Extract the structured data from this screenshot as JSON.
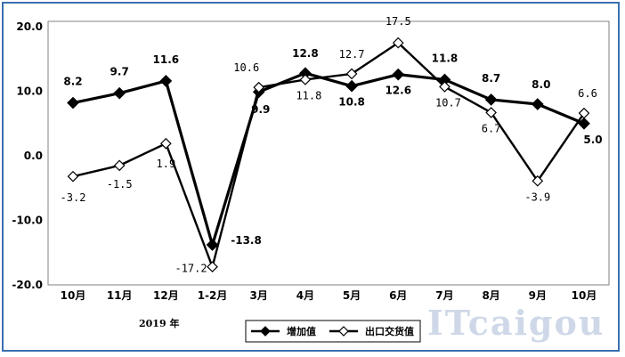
{
  "chart_data": {
    "type": "line",
    "categories": [
      "10月",
      "11月",
      "12月",
      "1-2月",
      "3月",
      "4月",
      "5月",
      "6月",
      "7月",
      "8月",
      "9月",
      "10月"
    ],
    "year_label": "2019 年",
    "ylim": [
      -20,
      20
    ],
    "yticks": [
      "20.0",
      "10.0",
      "0.0",
      "-10.0",
      "-20.0"
    ],
    "ytick_values": [
      20,
      10,
      0,
      -10,
      -20
    ],
    "grid": false,
    "legend_position": "bottom-center",
    "series": [
      {
        "name": "增加值",
        "marker": "filled-diamond",
        "color": "#000000",
        "values": [
          8.2,
          9.7,
          11.6,
          -13.8,
          9.9,
          12.8,
          10.8,
          12.6,
          11.8,
          8.7,
          8.0,
          5.0
        ],
        "labels": [
          "8.2",
          "9.7",
          "11.6",
          "-13.8",
          "9.9",
          "12.8",
          "10.8",
          "12.6",
          "11.8",
          "8.7",
          "8.0",
          "5.0"
        ]
      },
      {
        "name": "出口交货值",
        "marker": "open-diamond",
        "color": "#000000",
        "values": [
          -3.2,
          -1.5,
          1.9,
          -17.2,
          10.6,
          11.8,
          12.7,
          17.5,
          10.7,
          6.7,
          -3.9,
          6.6
        ],
        "labels": [
          "-3.2",
          "-1.5",
          "1.9",
          "-17.2",
          "10.6",
          "11.8",
          "12.7",
          "17.5",
          "10.7",
          "6.7",
          "-3.9",
          "6.6"
        ]
      }
    ]
  },
  "watermark": "ITcaigou"
}
